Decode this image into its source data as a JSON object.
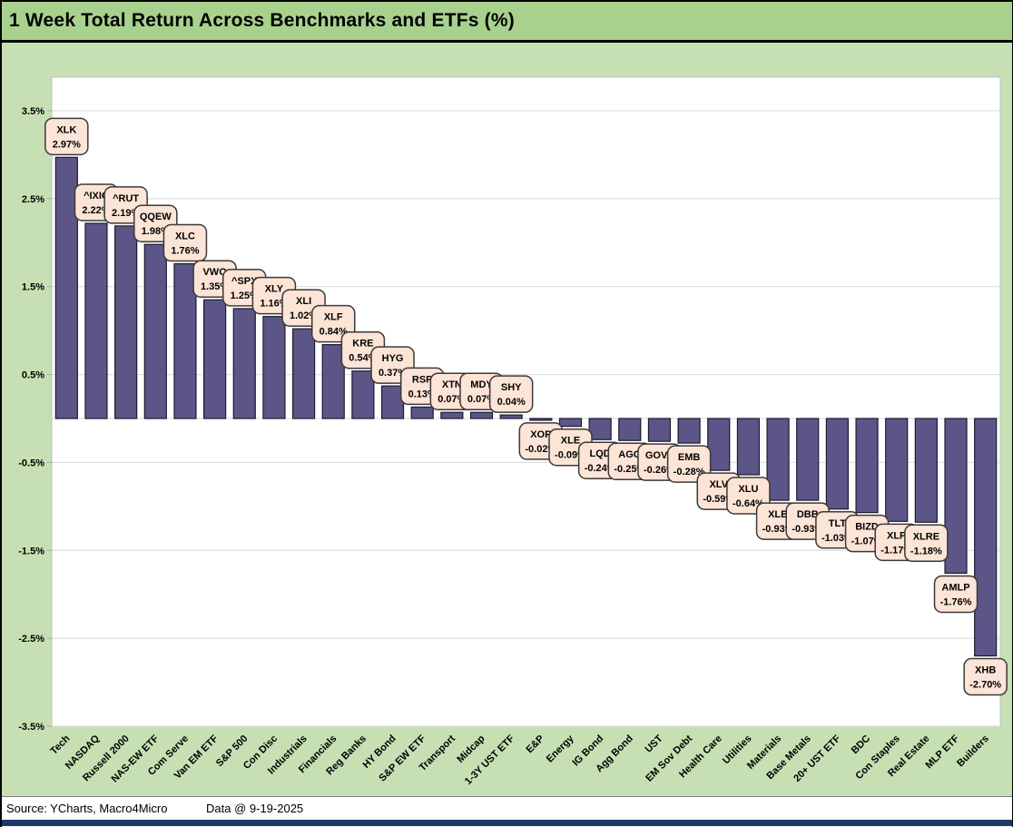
{
  "window": {
    "title": "1 Week Total Return Across Benchmarks and ETFs (%)",
    "footer": {
      "source_text": "Source: YCharts, Macro4Micro",
      "data_date_text": "Data @ 9-19-2025"
    }
  },
  "chart_data": {
    "type": "bar",
    "title": "1 Week Total Return Across Benchmarks and ETFs (%)",
    "xlabel": "",
    "ylabel": "",
    "ylim": [
      -3.5,
      3.5
    ],
    "grid": true,
    "legend": "none",
    "yticks": [
      {
        "value": 3.5,
        "label": "3.5%"
      },
      {
        "value": 2.5,
        "label": "2.5%"
      },
      {
        "value": 1.5,
        "label": "1.5%"
      },
      {
        "value": 0.5,
        "label": "0.5%"
      },
      {
        "value": -0.5,
        "label": "-0.5%"
      },
      {
        "value": -1.5,
        "label": "-1.5%"
      },
      {
        "value": -2.5,
        "label": "-2.5%"
      },
      {
        "value": -3.5,
        "label": "-3.5%"
      }
    ],
    "points": [
      {
        "ticker": "XLK",
        "value": 2.97,
        "value_label": "2.97%",
        "category": "Tech"
      },
      {
        "ticker": "^IXIC",
        "value": 2.22,
        "value_label": "2.22%",
        "category": "NASDAQ"
      },
      {
        "ticker": "^RUT",
        "value": 2.19,
        "value_label": "2.19%",
        "category": "Russell 2000"
      },
      {
        "ticker": "QQEW",
        "value": 1.98,
        "value_label": "1.98%",
        "category": "NAS-EW ETF"
      },
      {
        "ticker": "XLC",
        "value": 1.76,
        "value_label": "1.76%",
        "category": "Com Serve"
      },
      {
        "ticker": "VWO",
        "value": 1.35,
        "value_label": "1.35%",
        "category": "Van EM ETF"
      },
      {
        "ticker": "^SPX",
        "value": 1.25,
        "value_label": "1.25%",
        "category": "S&P 500"
      },
      {
        "ticker": "XLY",
        "value": 1.16,
        "value_label": "1.16%",
        "category": "Con Disc"
      },
      {
        "ticker": "XLI",
        "value": 1.02,
        "value_label": "1.02%",
        "category": "Industrials"
      },
      {
        "ticker": "XLF",
        "value": 0.84,
        "value_label": "0.84%",
        "category": "Financials"
      },
      {
        "ticker": "KRE",
        "value": 0.54,
        "value_label": "0.54%",
        "category": "Reg Banks"
      },
      {
        "ticker": "HYG",
        "value": 0.37,
        "value_label": "0.37%",
        "category": "HY Bond"
      },
      {
        "ticker": "RSP",
        "value": 0.13,
        "value_label": "0.13%",
        "category": "S&P EW ETF"
      },
      {
        "ticker": "XTN",
        "value": 0.07,
        "value_label": "0.07%",
        "category": "Transport"
      },
      {
        "ticker": "MDY",
        "value": 0.07,
        "value_label": "0.07%",
        "category": "Midcap"
      },
      {
        "ticker": "SHY",
        "value": 0.04,
        "value_label": "0.04%",
        "category": "1-3Y UST ETF"
      },
      {
        "ticker": "XOP",
        "value": -0.02,
        "value_label": "-0.02%",
        "category": "E&P"
      },
      {
        "ticker": "XLE",
        "value": -0.09,
        "value_label": "-0.09%",
        "category": "Energy"
      },
      {
        "ticker": "LQD",
        "value": -0.24,
        "value_label": "-0.24%",
        "category": "IG Bond"
      },
      {
        "ticker": "AGG",
        "value": -0.25,
        "value_label": "-0.25%",
        "category": "Agg Bond"
      },
      {
        "ticker": "GOVT",
        "value": -0.26,
        "value_label": "-0.26%",
        "category": "UST"
      },
      {
        "ticker": "EMB",
        "value": -0.28,
        "value_label": "-0.28%",
        "category": "EM Sov Debt"
      },
      {
        "ticker": "XLV",
        "value": -0.59,
        "value_label": "-0.59%",
        "category": "Health Care"
      },
      {
        "ticker": "XLU",
        "value": -0.64,
        "value_label": "-0.64%",
        "category": "Utilities"
      },
      {
        "ticker": "XLB",
        "value": -0.93,
        "value_label": "-0.93%",
        "category": "Materials"
      },
      {
        "ticker": "DBB",
        "value": -0.93,
        "value_label": "-0.93%",
        "category": "Base Metals"
      },
      {
        "ticker": "TLT",
        "value": -1.03,
        "value_label": "-1.03%",
        "category": "20+ UST ETF"
      },
      {
        "ticker": "BIZD",
        "value": -1.07,
        "value_label": "-1.07%",
        "category": "BDC"
      },
      {
        "ticker": "XLP",
        "value": -1.17,
        "value_label": "-1.17%",
        "category": "Con Staples"
      },
      {
        "ticker": "XLRE",
        "value": -1.18,
        "value_label": "-1.18%",
        "category": "Real Estate"
      },
      {
        "ticker": "AMLP",
        "value": -1.76,
        "value_label": "-1.76%",
        "category": "MLP ETF"
      },
      {
        "ticker": "XHB",
        "value": -2.7,
        "value_label": "-2.70%",
        "category": "Builders"
      }
    ],
    "colors": {
      "bar_fill": "#5c5588",
      "bar_stroke": "#1e1a2e",
      "label_box_fill": "#fce4d6",
      "label_box_stroke": "#3a3a3a",
      "gridline": "#d9d9d9",
      "plot_border": "#bfbfbf",
      "tick": "#a6a6a6",
      "title_bg": "#a9d18e",
      "region_bg": "#c6e0b4",
      "plot_bg": "#ffffff",
      "footer_bar": "#1f3864",
      "text": "#000000"
    }
  }
}
